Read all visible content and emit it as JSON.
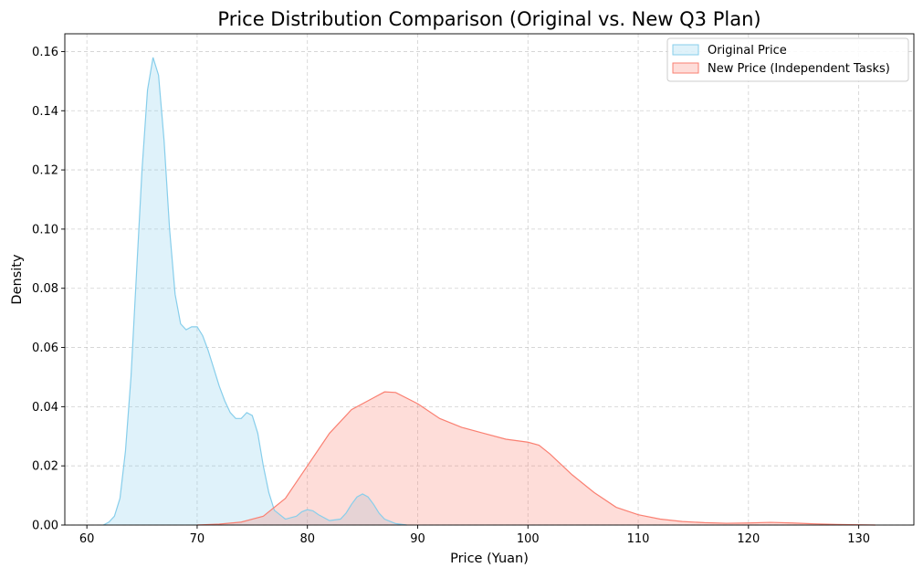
{
  "chart_data": {
    "type": "area",
    "title": "Price Distribution Comparison (Original vs. New Q3 Plan)",
    "xlabel": "Price (Yuan)",
    "ylabel": "Density",
    "xlim": [
      58,
      135
    ],
    "ylim": [
      0,
      0.166
    ],
    "x_ticks": [
      60,
      70,
      80,
      90,
      100,
      110,
      120,
      130
    ],
    "y_ticks": [
      0.0,
      0.02,
      0.04,
      0.06,
      0.08,
      0.1,
      0.12,
      0.14,
      0.16
    ],
    "grid": true,
    "legend_position": "top-right",
    "series": [
      {
        "name": "Original Price",
        "color": "#87ceeb",
        "points": [
          [
            61.5,
            0.0
          ],
          [
            62,
            0.001
          ],
          [
            62.5,
            0.003
          ],
          [
            63,
            0.009
          ],
          [
            63.5,
            0.025
          ],
          [
            64,
            0.05
          ],
          [
            64.5,
            0.085
          ],
          [
            65,
            0.12
          ],
          [
            65.5,
            0.147
          ],
          [
            66,
            0.158
          ],
          [
            66.5,
            0.152
          ],
          [
            67,
            0.13
          ],
          [
            67.5,
            0.1
          ],
          [
            68,
            0.078
          ],
          [
            68.5,
            0.068
          ],
          [
            69,
            0.066
          ],
          [
            69.5,
            0.067
          ],
          [
            70,
            0.067
          ],
          [
            70.5,
            0.064
          ],
          [
            71,
            0.059
          ],
          [
            71.5,
            0.053
          ],
          [
            72,
            0.047
          ],
          [
            72.5,
            0.042
          ],
          [
            73,
            0.038
          ],
          [
            73.5,
            0.036
          ],
          [
            74,
            0.036
          ],
          [
            74.5,
            0.038
          ],
          [
            75,
            0.037
          ],
          [
            75.5,
            0.031
          ],
          [
            76,
            0.02
          ],
          [
            76.5,
            0.011
          ],
          [
            77,
            0.005
          ],
          [
            78,
            0.002
          ],
          [
            79,
            0.003
          ],
          [
            79.5,
            0.0045
          ],
          [
            80,
            0.0052
          ],
          [
            80.5,
            0.0048
          ],
          [
            81,
            0.0035
          ],
          [
            82,
            0.0015
          ],
          [
            83,
            0.002
          ],
          [
            83.5,
            0.004
          ],
          [
            84,
            0.007
          ],
          [
            84.5,
            0.0095
          ],
          [
            85,
            0.0105
          ],
          [
            85.5,
            0.0095
          ],
          [
            86,
            0.007
          ],
          [
            86.5,
            0.004
          ],
          [
            87,
            0.002
          ],
          [
            88,
            0.0005
          ],
          [
            89,
            0.0
          ]
        ]
      },
      {
        "name": "New Price (Independent Tasks)",
        "color": "#fa8072",
        "points": [
          [
            70,
            0.0
          ],
          [
            72,
            0.0003
          ],
          [
            74,
            0.001
          ],
          [
            76,
            0.003
          ],
          [
            78,
            0.009
          ],
          [
            80,
            0.02
          ],
          [
            82,
            0.031
          ],
          [
            84,
            0.039
          ],
          [
            86,
            0.043
          ],
          [
            87,
            0.045
          ],
          [
            88,
            0.0448
          ],
          [
            90,
            0.041
          ],
          [
            92,
            0.036
          ],
          [
            94,
            0.033
          ],
          [
            96,
            0.031
          ],
          [
            98,
            0.029
          ],
          [
            100,
            0.028
          ],
          [
            101,
            0.027
          ],
          [
            102,
            0.024
          ],
          [
            104,
            0.017
          ],
          [
            106,
            0.011
          ],
          [
            108,
            0.006
          ],
          [
            110,
            0.0035
          ],
          [
            112,
            0.002
          ],
          [
            114,
            0.0012
          ],
          [
            116,
            0.0008
          ],
          [
            118,
            0.0006
          ],
          [
            120,
            0.0007
          ],
          [
            122,
            0.0009
          ],
          [
            124,
            0.0007
          ],
          [
            126,
            0.0004
          ],
          [
            128,
            0.0002
          ],
          [
            130,
            0.0001
          ],
          [
            131.5,
            0.0
          ]
        ]
      }
    ]
  }
}
